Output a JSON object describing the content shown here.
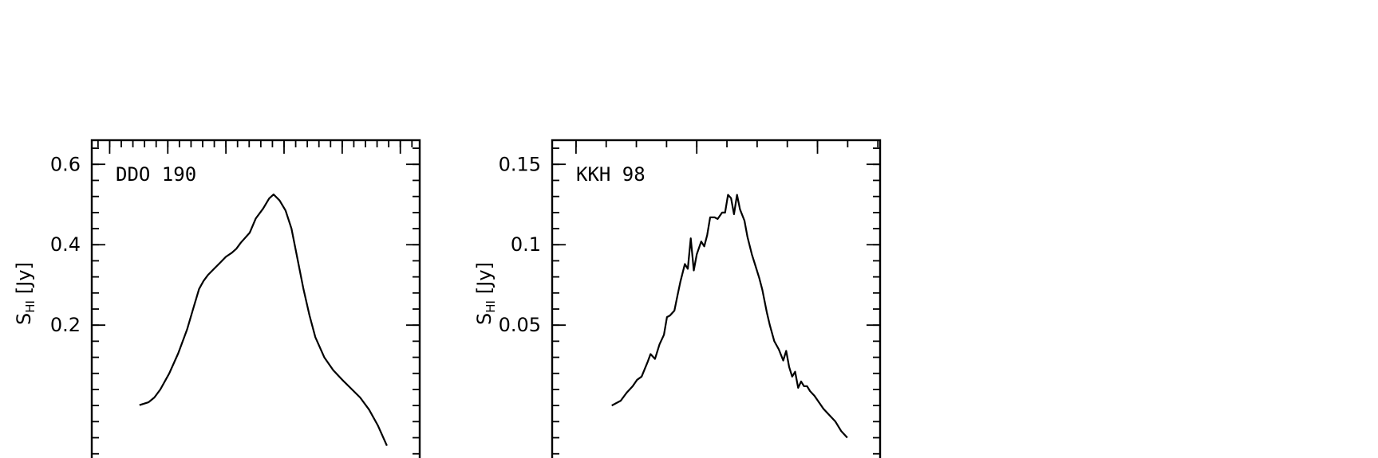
{
  "chart_data": [
    {
      "type": "line",
      "title": "DDO 190",
      "ylabel_main": "S",
      "ylabel_sub": "HI",
      "ylabel_unit": "[Jy]",
      "ylim": [
        -0.18,
        0.66
      ],
      "yticks": [
        {
          "value": 0.2,
          "label": "0.2"
        },
        {
          "value": 0.4,
          "label": "0.4"
        },
        {
          "value": 0.6,
          "label": "0.6"
        }
      ],
      "y_minor_step": 0.04,
      "xlim": [
        0,
        11
      ],
      "x_major_ticks": [
        0.6,
        2.55,
        4.5,
        6.45,
        8.4,
        10.35
      ],
      "x_minor_step": 0.39,
      "series": [
        {
          "x": [
            1.6,
            1.9,
            2.1,
            2.3,
            2.6,
            2.9,
            3.2,
            3.4,
            3.6,
            3.75,
            3.9,
            4.1,
            4.3,
            4.5,
            4.7,
            4.85,
            5.0,
            5.3,
            5.5,
            5.75,
            5.95,
            6.1,
            6.3,
            6.5,
            6.7,
            6.9,
            7.1,
            7.3,
            7.5,
            7.8,
            8.1,
            8.4,
            8.7,
            9.0,
            9.3,
            9.6,
            9.9
          ],
          "y": [
            0.001,
            0.008,
            0.02,
            0.04,
            0.08,
            0.13,
            0.19,
            0.24,
            0.29,
            0.31,
            0.325,
            0.34,
            0.355,
            0.37,
            0.38,
            0.39,
            0.405,
            0.43,
            0.465,
            0.49,
            0.515,
            0.525,
            0.51,
            0.485,
            0.44,
            0.365,
            0.29,
            0.225,
            0.17,
            0.12,
            0.088,
            0.064,
            0.042,
            0.02,
            -0.01,
            -0.05,
            -0.1
          ]
        }
      ]
    },
    {
      "type": "line",
      "title": "KKH 98",
      "ylabel_main": "S",
      "ylabel_sub": "HI",
      "ylabel_unit": "[Jy]",
      "ylim": [
        -0.045,
        0.165
      ],
      "yticks": [
        {
          "value": 0.05,
          "label": "0.05"
        },
        {
          "value": 0.1,
          "label": "0.1"
        },
        {
          "value": 0.15,
          "label": "0.15"
        }
      ],
      "y_minor_step": 0.01,
      "xlim": [
        0,
        11
      ],
      "x_major_ticks": [
        0.8,
        4.85,
        8.9
      ],
      "x_minor_step": 1.0125,
      "series": [
        {
          "x": [
            2.0,
            2.3,
            2.5,
            2.7,
            2.85,
            3.0,
            3.2,
            3.3,
            3.45,
            3.6,
            3.75,
            3.85,
            3.95,
            4.1,
            4.2,
            4.3,
            4.45,
            4.55,
            4.65,
            4.75,
            4.85,
            5.0,
            5.1,
            5.2,
            5.3,
            5.45,
            5.55,
            5.7,
            5.8,
            5.9,
            6.0,
            6.1,
            6.2,
            6.3,
            6.45,
            6.55,
            6.7,
            6.8,
            6.95,
            7.05,
            7.2,
            7.3,
            7.45,
            7.6,
            7.75,
            7.85,
            7.95,
            8.05,
            8.15,
            8.25,
            8.35,
            8.45,
            8.55,
            8.65,
            8.8,
            8.95,
            9.1,
            9.3,
            9.5,
            9.7,
            9.9
          ],
          "y": [
            0.0,
            0.003,
            0.008,
            0.012,
            0.016,
            0.018,
            0.027,
            0.032,
            0.029,
            0.038,
            0.044,
            0.055,
            0.056,
            0.059,
            0.068,
            0.077,
            0.088,
            0.085,
            0.104,
            0.084,
            0.094,
            0.102,
            0.099,
            0.106,
            0.117,
            0.117,
            0.116,
            0.12,
            0.12,
            0.131,
            0.129,
            0.119,
            0.131,
            0.122,
            0.115,
            0.105,
            0.094,
            0.088,
            0.079,
            0.072,
            0.058,
            0.05,
            0.04,
            0.035,
            0.028,
            0.034,
            0.024,
            0.018,
            0.021,
            0.011,
            0.015,
            0.012,
            0.012,
            0.009,
            0.006,
            0.002,
            -0.002,
            -0.006,
            -0.01,
            -0.016,
            -0.02
          ]
        }
      ]
    }
  ]
}
